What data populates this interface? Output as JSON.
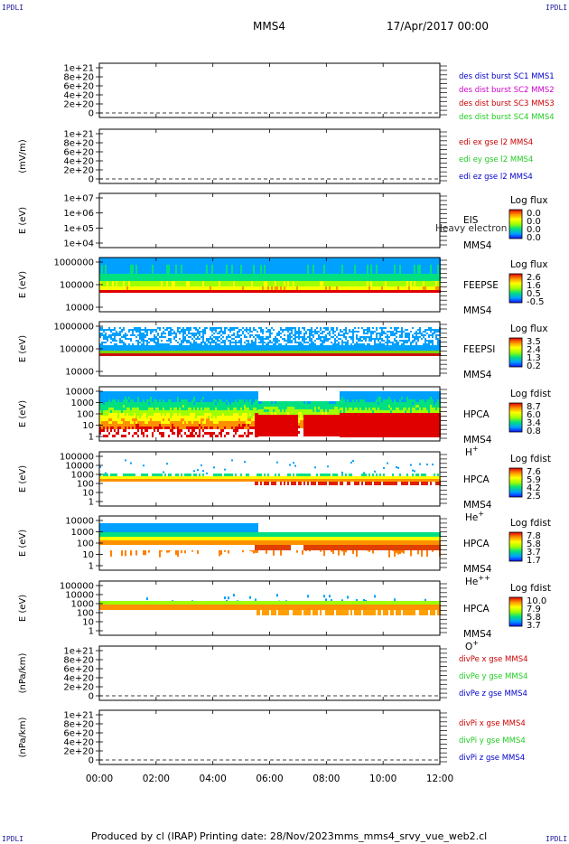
{
  "header": {
    "corner_label": "IPDLI",
    "mission": "MMS4",
    "datetime": "17/Apr/2017 00:00"
  },
  "footer": {
    "producer": "Produced by cl (IRAP)",
    "print_date": "Printing date: 28/Nov/2023",
    "filename": "mms_mms4_srvy_vue_web2.cl"
  },
  "colors": {
    "red": "#cc0000",
    "green": "#22cc22",
    "blue": "#0000cc",
    "magenta": "#cc00cc"
  },
  "chart_data": [
    {
      "id": "p1",
      "type": "line",
      "ylabel": "",
      "yticks": [
        "1e+21",
        "8e+20",
        "6e+20",
        "4e+20",
        "2e+20",
        "0"
      ],
      "legend": [
        {
          "text": "des dist burst SC1 MMS1",
          "color": "#0000cc"
        },
        {
          "text": "des dist burst SC2 MMS2",
          "color": "#cc00cc"
        },
        {
          "text": "des dist burst SC3 MMS3",
          "color": "#cc0000"
        },
        {
          "text": "des dist burst SC4 MMS4",
          "color": "#22cc22"
        }
      ]
    },
    {
      "id": "p2",
      "type": "line",
      "ylabel": "(mV/m)",
      "yticks": [
        "1e+21",
        "8e+20",
        "6e+20",
        "4e+20",
        "2e+20",
        "0"
      ],
      "legend": [
        {
          "text": "edi ex gse l2 MMS4",
          "color": "#cc0000"
        },
        {
          "text": "edi ey gse l2 MMS4",
          "color": "#22cc22"
        },
        {
          "text": "edi ez gse l2 MMS4",
          "color": "#0000cc"
        }
      ]
    },
    {
      "id": "p3",
      "type": "heatmap",
      "ylabel": "E (eV)",
      "yticks": [
        "1e+07",
        "1e+06",
        "1e+05",
        "1e+04"
      ],
      "inst": [
        "EIS",
        "MMS4"
      ],
      "overlay": "Heavy electron to",
      "cbar_title": "Log flux",
      "cbar_ticks": [
        "0.0",
        "0.0",
        "0.0",
        "0.0"
      ]
    },
    {
      "id": "p4",
      "type": "heatmap",
      "ylabel": "E (eV)",
      "yticks": [
        "1000000",
        "100000",
        "10000"
      ],
      "inst": [
        "FEEPSE",
        "MMS4"
      ],
      "cbar_title": "Log flux",
      "cbar_ticks": [
        "2.6",
        "1.6",
        "0.5",
        "-0.5"
      ]
    },
    {
      "id": "p5",
      "type": "heatmap",
      "ylabel": "E (eV)",
      "yticks": [
        "1000000",
        "100000",
        "10000"
      ],
      "inst": [
        "FEEPSI",
        "MMS4"
      ],
      "cbar_title": "Log flux",
      "cbar_ticks": [
        "3.5",
        "2.4",
        "1.3",
        "0.2"
      ]
    },
    {
      "id": "p6",
      "type": "heatmap",
      "ylabel": "E (eV)",
      "yticks": [
        "10000",
        "1000",
        "100",
        "10",
        "1"
      ],
      "inst": [
        "HPCA",
        "MMS4"
      ],
      "species": "H",
      "charge": "+",
      "cbar_title": "Log fdist",
      "cbar_ticks": [
        "8.7",
        "6.0",
        "3.4",
        "0.8"
      ]
    },
    {
      "id": "p7",
      "type": "heatmap",
      "ylabel": "E (eV)",
      "yticks": [
        "100000",
        "10000",
        "1000",
        "100",
        "10",
        "1"
      ],
      "inst": [
        "HPCA",
        "MMS4"
      ],
      "species": "He",
      "charge": "+",
      "cbar_title": "Log fdist",
      "cbar_ticks": [
        "7.6",
        "5.9",
        "4.2",
        "2.5"
      ]
    },
    {
      "id": "p8",
      "type": "heatmap",
      "ylabel": "E (eV)",
      "yticks": [
        "10000",
        "1000",
        "100",
        "10",
        "1"
      ],
      "inst": [
        "HPCA",
        "MMS4"
      ],
      "species": "He",
      "charge": "++",
      "cbar_title": "Log fdist",
      "cbar_ticks": [
        "7.8",
        "5.8",
        "3.7",
        "1.7"
      ]
    },
    {
      "id": "p9",
      "type": "heatmap",
      "ylabel": "E (eV)",
      "yticks": [
        "100000",
        "10000",
        "1000",
        "100",
        "10",
        "1"
      ],
      "inst": [
        "HPCA",
        "MMS4"
      ],
      "species": "O",
      "charge": "+",
      "cbar_title": "Log fdist",
      "cbar_ticks": [
        "10.0",
        "7.9",
        "5.8",
        "3.7"
      ]
    },
    {
      "id": "p10",
      "type": "line",
      "ylabel": "(nPa/km)",
      "yticks": [
        "1e+21",
        "8e+20",
        "6e+20",
        "4e+20",
        "2e+20",
        "0"
      ],
      "legend": [
        {
          "text": "divPe x gse MMS4",
          "color": "#cc0000"
        },
        {
          "text": "divPe y gse MMS4",
          "color": "#22cc22"
        },
        {
          "text": "divPe z gse MMS4",
          "color": "#0000cc"
        }
      ]
    },
    {
      "id": "p11",
      "type": "line",
      "ylabel": "(nPa/km)",
      "yticks": [
        "1e+21",
        "8e+20",
        "6e+20",
        "4e+20",
        "2e+20",
        "0"
      ],
      "legend": [
        {
          "text": "divPi x gse MMS4",
          "color": "#cc0000"
        },
        {
          "text": "divPi y gse MMS4",
          "color": "#22cc22"
        },
        {
          "text": "divPi z gse MMS4",
          "color": "#0000cc"
        }
      ]
    }
  ],
  "time_axis": {
    "ticks": [
      "00:00",
      "02:00",
      "04:00",
      "06:00",
      "08:00",
      "10:00",
      "12:00"
    ]
  }
}
